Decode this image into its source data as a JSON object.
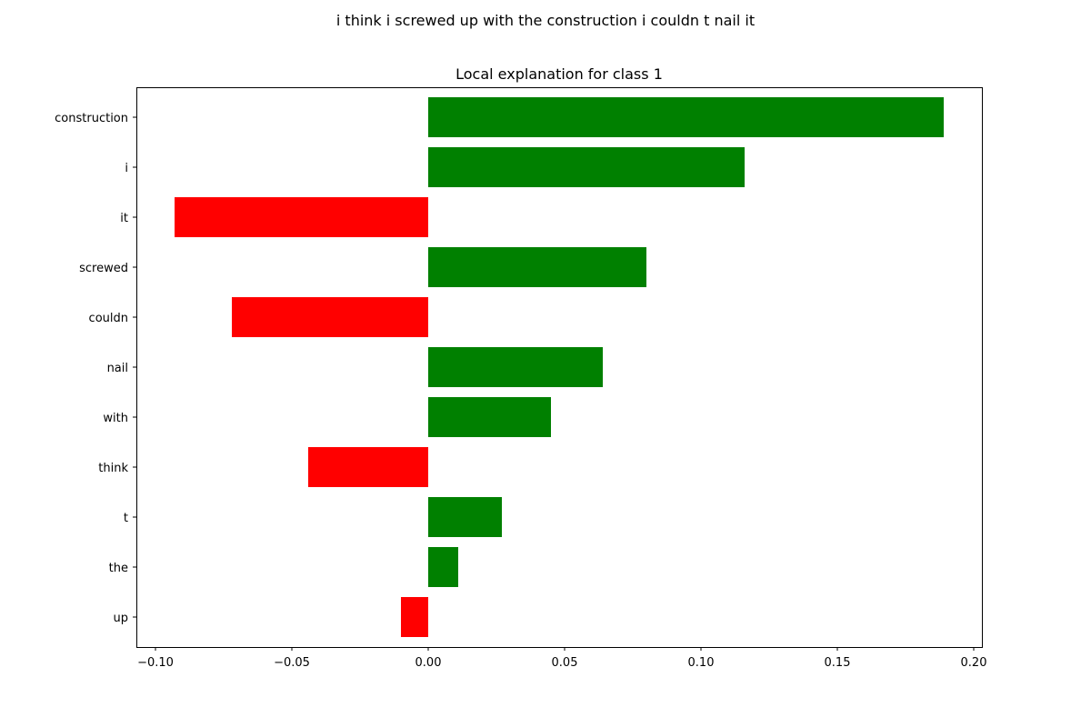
{
  "suptitle": "i think i screwed up with the construction i couldn t nail it",
  "chart_data": {
    "type": "bar",
    "orientation": "horizontal",
    "title": "Local explanation for class 1",
    "xlabel": "",
    "ylabel": "",
    "xlim": [
      -0.107,
      0.203
    ],
    "xticks": [
      -0.1,
      -0.05,
      0.0,
      0.05,
      0.1,
      0.15,
      0.2
    ],
    "xtick_labels": [
      "−0.10",
      "−0.05",
      "0.00",
      "0.05",
      "0.10",
      "0.15",
      "0.20"
    ],
    "grid": false,
    "categories": [
      "construction",
      "i",
      "it",
      "screwed",
      "couldn",
      "nail",
      "with",
      "think",
      "t",
      "the",
      "up"
    ],
    "values": [
      0.189,
      0.116,
      -0.093,
      0.08,
      -0.072,
      0.064,
      0.045,
      -0.044,
      0.027,
      0.011,
      -0.01
    ],
    "positive_color": "#008000",
    "negative_color": "#ff0000"
  }
}
